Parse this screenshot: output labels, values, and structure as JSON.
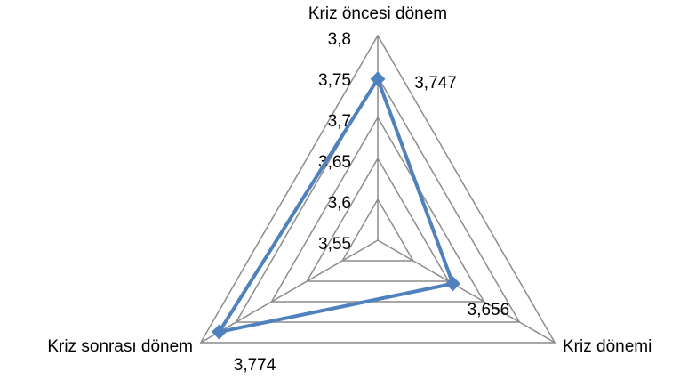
{
  "chart_data": {
    "type": "radar",
    "categories": [
      "Kriz öncesi dönem",
      "Kriz dönemi",
      "Kriz sonrası dönem"
    ],
    "series": [
      {
        "color": "#4f81bd",
        "values": [
          3.747,
          3.656,
          3.774
        ],
        "value_labels": [
          "3,747",
          "3,656",
          "3,774"
        ]
      }
    ],
    "ylim": [
      3.55,
      3.8
    ],
    "yticks": [
      {
        "value": 3.55,
        "label": "3,55"
      },
      {
        "value": 3.6,
        "label": "3,6"
      },
      {
        "value": 3.65,
        "label": "3,65"
      },
      {
        "value": 3.7,
        "label": "3,7"
      },
      {
        "value": 3.75,
        "label": "3,75"
      },
      {
        "value": 3.8,
        "label": "3,8"
      }
    ],
    "grid": true
  }
}
